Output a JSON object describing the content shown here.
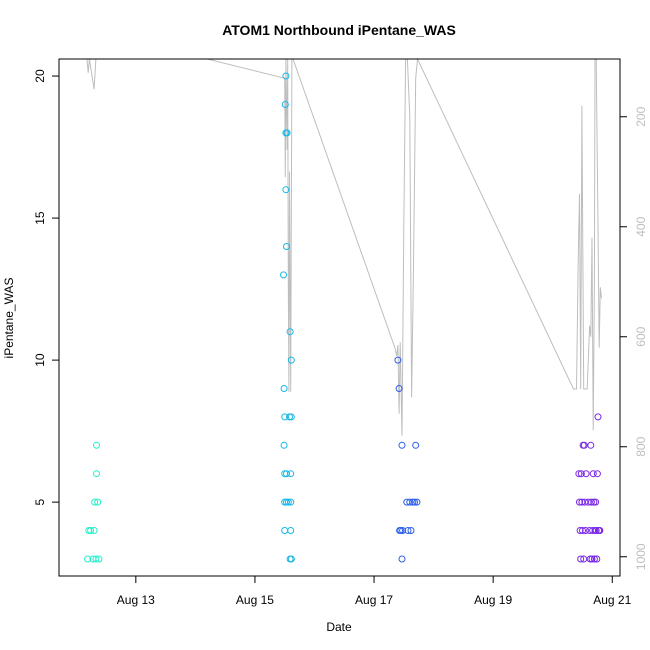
{
  "chart_data": {
    "type": "scatter",
    "title": "ATOM1 Northbound iPentane_WAS",
    "xlabel": "Date",
    "ylabel": "iPentane_WAS",
    "x_ticks": [
      {
        "day": 13,
        "label": "Aug 13"
      },
      {
        "day": 15,
        "label": "Aug 15"
      },
      {
        "day": 17,
        "label": "Aug 17"
      },
      {
        "day": 19,
        "label": "Aug 19"
      },
      {
        "day": 21,
        "label": "Aug 21"
      }
    ],
    "x_range_days": [
      11.71,
      21.13
    ],
    "ylim": [
      2.4,
      20.6
    ],
    "y_ticks": [
      5,
      10,
      15,
      20
    ],
    "y2_ticks": [
      200,
      400,
      600,
      800,
      1000
    ],
    "y2_range": [
      95,
      1035
    ],
    "y2_reversed": true,
    "grid": false,
    "colors": {
      "axis": "#000000",
      "line": "#bebebe"
    },
    "series": [
      {
        "color": "#22f0c8",
        "points": [
          {
            "day": 12.19,
            "y": 3
          },
          {
            "day": 12.21,
            "y": 4
          },
          {
            "day": 12.24,
            "y": 4
          },
          {
            "day": 12.28,
            "y": 3
          },
          {
            "day": 12.3,
            "y": 4
          },
          {
            "day": 12.31,
            "y": 5
          },
          {
            "day": 12.33,
            "y": 3
          },
          {
            "day": 12.34,
            "y": 6
          },
          {
            "day": 12.34,
            "y": 7
          },
          {
            "day": 12.36,
            "y": 5
          },
          {
            "day": 12.38,
            "y": 3
          }
        ]
      },
      {
        "color": "#18b8e8",
        "points": [
          {
            "day": 15.48,
            "y": 13
          },
          {
            "day": 15.49,
            "y": 9
          },
          {
            "day": 15.49,
            "y": 7
          },
          {
            "day": 15.5,
            "y": 6
          },
          {
            "day": 15.5,
            "y": 5
          },
          {
            "day": 15.5,
            "y": 4
          },
          {
            "day": 15.5,
            "y": 8
          },
          {
            "day": 15.51,
            "y": 19
          },
          {
            "day": 15.52,
            "y": 18
          },
          {
            "day": 15.52,
            "y": 20
          },
          {
            "day": 15.52,
            "y": 16
          },
          {
            "day": 15.53,
            "y": 14
          },
          {
            "day": 15.53,
            "y": 6
          },
          {
            "day": 15.53,
            "y": 5
          },
          {
            "day": 15.54,
            "y": 18
          },
          {
            "day": 15.56,
            "y": 5
          },
          {
            "day": 15.58,
            "y": 8
          },
          {
            "day": 15.59,
            "y": 11
          },
          {
            "day": 15.59,
            "y": 3
          },
          {
            "day": 15.6,
            "y": 6
          },
          {
            "day": 15.6,
            "y": 4
          },
          {
            "day": 15.6,
            "y": 5
          },
          {
            "day": 15.61,
            "y": 8
          },
          {
            "day": 15.61,
            "y": 10
          },
          {
            "day": 15.61,
            "y": 3
          }
        ]
      },
      {
        "color": "#2c5fe8",
        "points": [
          {
            "day": 17.4,
            "y": 10
          },
          {
            "day": 17.42,
            "y": 9
          },
          {
            "day": 17.43,
            "y": 4
          },
          {
            "day": 17.45,
            "y": 4
          },
          {
            "day": 17.47,
            "y": 7
          },
          {
            "day": 17.47,
            "y": 3
          },
          {
            "day": 17.48,
            "y": 4
          },
          {
            "day": 17.55,
            "y": 5
          },
          {
            "day": 17.57,
            "y": 4
          },
          {
            "day": 17.6,
            "y": 5
          },
          {
            "day": 17.62,
            "y": 4
          },
          {
            "day": 17.65,
            "y": 5
          },
          {
            "day": 17.68,
            "y": 5
          },
          {
            "day": 17.7,
            "y": 7
          },
          {
            "day": 17.72,
            "y": 5
          }
        ]
      },
      {
        "color": "#7a28e8",
        "points": [
          {
            "day": 20.44,
            "y": 6
          },
          {
            "day": 20.45,
            "y": 5
          },
          {
            "day": 20.46,
            "y": 4
          },
          {
            "day": 20.47,
            "y": 3
          },
          {
            "day": 20.48,
            "y": 6
          },
          {
            "day": 20.49,
            "y": 5
          },
          {
            "day": 20.5,
            "y": 4
          },
          {
            "day": 20.51,
            "y": 7
          },
          {
            "day": 20.52,
            "y": 3
          },
          {
            "day": 20.53,
            "y": 7
          },
          {
            "day": 20.54,
            "y": 5
          },
          {
            "day": 20.55,
            "y": 4
          },
          {
            "day": 20.56,
            "y": 6
          },
          {
            "day": 20.6,
            "y": 5
          },
          {
            "day": 20.62,
            "y": 4
          },
          {
            "day": 20.63,
            "y": 3
          },
          {
            "day": 20.64,
            "y": 7
          },
          {
            "day": 20.65,
            "y": 5
          },
          {
            "day": 20.66,
            "y": 3
          },
          {
            "day": 20.67,
            "y": 4
          },
          {
            "day": 20.68,
            "y": 6
          },
          {
            "day": 20.69,
            "y": 5
          },
          {
            "day": 20.7,
            "y": 3
          },
          {
            "day": 20.71,
            "y": 4
          },
          {
            "day": 20.72,
            "y": 5
          },
          {
            "day": 20.73,
            "y": 4
          },
          {
            "day": 20.74,
            "y": 3
          },
          {
            "day": 20.75,
            "y": 6
          },
          {
            "day": 20.76,
            "y": 8
          },
          {
            "day": 20.77,
            "y": 4
          },
          {
            "day": 20.78,
            "y": 4
          },
          {
            "day": 20.79,
            "y": 4
          }
        ]
      }
    ],
    "line_series": [
      {
        "day": 12.18,
        "y2": 95
      },
      {
        "day": 12.2,
        "y2": 120
      },
      {
        "day": 12.22,
        "y2": 80
      },
      {
        "day": 12.3,
        "y2": 150
      },
      {
        "day": 12.33,
        "y2": 90
      },
      {
        "day": 14.2,
        "y2": 95
      },
      {
        "day": 15.5,
        "y2": 130
      },
      {
        "day": 15.51,
        "y2": 310
      },
      {
        "day": 15.52,
        "y2": 60
      },
      {
        "day": 15.54,
        "y2": 260
      },
      {
        "day": 15.55,
        "y2": 40
      },
      {
        "day": 15.56,
        "y2": 500
      },
      {
        "day": 15.57,
        "y2": 700
      },
      {
        "day": 15.58,
        "y2": 300
      },
      {
        "day": 15.6,
        "y2": 700
      },
      {
        "day": 15.62,
        "y2": 60
      },
      {
        "day": 15.64,
        "y2": 40
      },
      {
        "day": 17.35,
        "y2": 620
      },
      {
        "day": 17.38,
        "y2": 635
      },
      {
        "day": 17.4,
        "y2": 615
      },
      {
        "day": 17.42,
        "y2": 740
      },
      {
        "day": 17.44,
        "y2": 610
      },
      {
        "day": 17.47,
        "y2": 780
      },
      {
        "day": 17.5,
        "y2": 400
      },
      {
        "day": 17.53,
        "y2": 60
      },
      {
        "day": 17.56,
        "y2": 40
      },
      {
        "day": 17.6,
        "y2": 200
      },
      {
        "day": 17.63,
        "y2": 710
      },
      {
        "day": 17.66,
        "y2": 500
      },
      {
        "day": 17.7,
        "y2": 130
      },
      {
        "day": 17.73,
        "y2": 95
      },
      {
        "day": 20.35,
        "y2": 695
      },
      {
        "day": 20.4,
        "y2": 695
      },
      {
        "day": 20.43,
        "y2": 450
      },
      {
        "day": 20.45,
        "y2": 340
      },
      {
        "day": 20.47,
        "y2": 695
      },
      {
        "day": 20.49,
        "y2": 180
      },
      {
        "day": 20.52,
        "y2": 695
      },
      {
        "day": 20.55,
        "y2": 695
      },
      {
        "day": 20.58,
        "y2": 695
      },
      {
        "day": 20.62,
        "y2": 580
      },
      {
        "day": 20.64,
        "y2": 600
      },
      {
        "day": 20.66,
        "y2": 420
      },
      {
        "day": 20.68,
        "y2": 770
      },
      {
        "day": 20.7,
        "y2": 500
      },
      {
        "day": 20.71,
        "y2": 80
      },
      {
        "day": 20.73,
        "y2": 60
      },
      {
        "day": 20.76,
        "y2": 400
      },
      {
        "day": 20.78,
        "y2": 620
      },
      {
        "day": 20.8,
        "y2": 510
      },
      {
        "day": 20.82,
        "y2": 530
      }
    ]
  }
}
